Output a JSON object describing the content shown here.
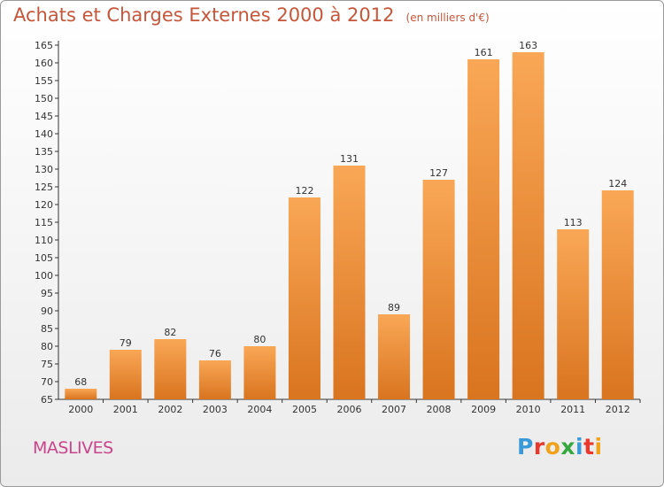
{
  "chart_data": {
    "type": "bar",
    "title": "Achats et Charges Externes 2000 à 2012",
    "subtitle": "(en milliers d'€)",
    "categories": [
      "2000",
      "2001",
      "2002",
      "2003",
      "2004",
      "2005",
      "2006",
      "2007",
      "2008",
      "2009",
      "2010",
      "2011",
      "2012"
    ],
    "values": [
      68,
      79,
      82,
      76,
      80,
      122,
      131,
      89,
      127,
      161,
      163,
      113,
      124
    ],
    "ylim": [
      65,
      165
    ],
    "yticks": [
      65,
      70,
      75,
      80,
      85,
      90,
      95,
      100,
      105,
      110,
      115,
      120,
      125,
      130,
      135,
      140,
      145,
      150,
      155,
      160,
      165
    ],
    "grid": false,
    "legend": "none",
    "colors": {
      "bar_light": "#f9a756",
      "bar_dark": "#d9741f",
      "title": "#c6563a"
    }
  },
  "footer": {
    "location": "MASLIVES",
    "brand": "Proxiti",
    "brand_colors": [
      "#3a9ad9",
      "#e8392c",
      "#f0a21a",
      "#36a83f",
      "#3a9ad9",
      "#e8392c",
      "#f0a21a"
    ]
  }
}
